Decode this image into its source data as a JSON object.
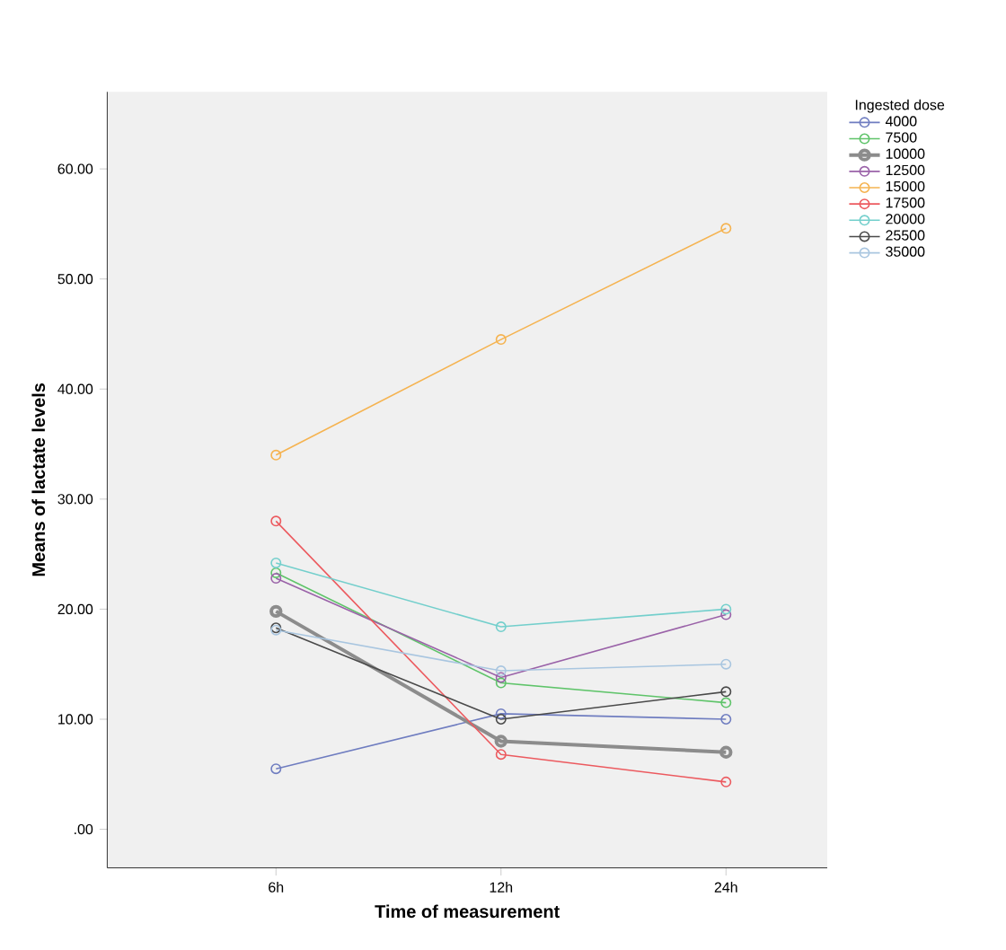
{
  "chart_data": {
    "type": "line",
    "xlabel": "Time of measurement",
    "ylabel": "Means of lactate levels",
    "legend_title": "Ingested dose",
    "categories": [
      "6h",
      "12h",
      "24h"
    ],
    "ylim": [
      -3.5,
      67
    ],
    "yticks": [
      {
        "value": 0,
        "label": ".00"
      },
      {
        "value": 10,
        "label": "10.00"
      },
      {
        "value": 20,
        "label": "20.00"
      },
      {
        "value": 30,
        "label": "30.00"
      },
      {
        "value": 40,
        "label": "40.00"
      },
      {
        "value": 50,
        "label": "50.00"
      },
      {
        "value": 60,
        "label": "60.00"
      }
    ],
    "legend": "right",
    "marker": "circle",
    "grid": false,
    "series": [
      {
        "name": "4000",
        "color": "#6f7dc0",
        "values": [
          5.5,
          10.5,
          10.0
        ]
      },
      {
        "name": "7500",
        "color": "#5fc46a",
        "values": [
          23.3,
          13.3,
          11.5
        ]
      },
      {
        "name": "10000",
        "color": "#8c8c8c",
        "values": [
          19.8,
          8.0,
          7.0
        ]
      },
      {
        "name": "12500",
        "color": "#9a62a8",
        "values": [
          22.8,
          13.8,
          19.5
        ]
      },
      {
        "name": "15000",
        "color": "#f5b350",
        "values": [
          34.0,
          44.5,
          54.6
        ]
      },
      {
        "name": "17500",
        "color": "#ec5a5f",
        "values": [
          28.0,
          6.8,
          4.3
        ]
      },
      {
        "name": "20000",
        "color": "#73cfcc",
        "values": [
          24.2,
          18.4,
          20.0
        ]
      },
      {
        "name": "25500",
        "color": "#4a4a4a",
        "values": [
          18.3,
          10.0,
          12.5
        ]
      },
      {
        "name": "35000",
        "color": "#a9c6e0",
        "values": [
          18.1,
          14.4,
          15.0
        ]
      }
    ]
  }
}
